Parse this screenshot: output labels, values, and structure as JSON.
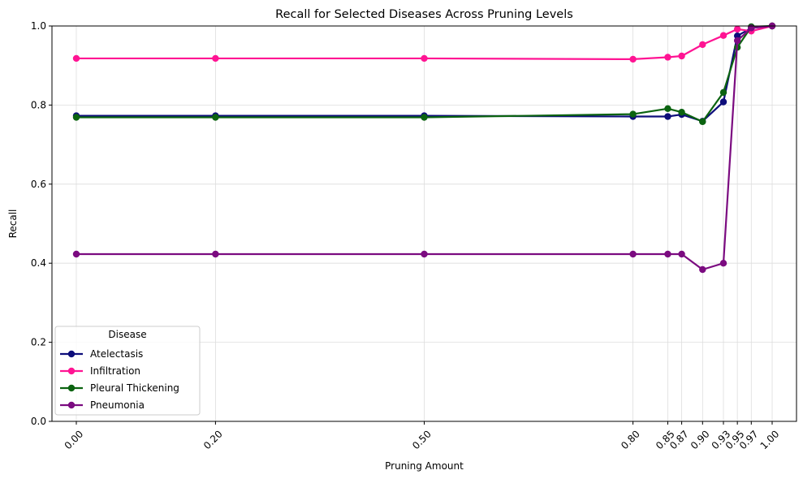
{
  "chart_data": {
    "type": "line",
    "title": "Recall for Selected Diseases Across Pruning Levels",
    "xlabel": "Pruning Amount",
    "ylabel": "Recall",
    "x": [
      0.0,
      0.2,
      0.5,
      0.8,
      0.85,
      0.87,
      0.9,
      0.93,
      0.95,
      0.97,
      1.0
    ],
    "x_tick_labels": [
      "0.00",
      "0.20",
      "0.50",
      "0.80",
      "0.85",
      "0.87",
      "0.90",
      "0.93",
      "0.95",
      "0.97",
      "1.00"
    ],
    "y_ticks": [
      0.0,
      0.2,
      0.4,
      0.6,
      0.8,
      1.0
    ],
    "y_tick_labels": [
      "0.0",
      "0.2",
      "0.4",
      "0.6",
      "0.8",
      "1.0"
    ],
    "xlim": [
      -0.035,
      1.035
    ],
    "ylim": [
      0.0,
      1.0
    ],
    "grid": true,
    "legend": {
      "title": "Disease",
      "placement": "lower-left"
    },
    "series": [
      {
        "name": "Atelectasis",
        "color": "#0d0d7a",
        "values": [
          0.773,
          0.773,
          0.773,
          0.771,
          0.771,
          0.776,
          0.759,
          0.808,
          0.975,
          0.995,
          1.0
        ]
      },
      {
        "name": "Infiltration",
        "color": "#ff1493",
        "values": [
          0.918,
          0.918,
          0.918,
          0.916,
          0.921,
          0.924,
          0.953,
          0.976,
          0.992,
          0.987,
          1.0
        ]
      },
      {
        "name": "Pleural Thickening",
        "color": "#0b6310",
        "values": [
          0.769,
          0.769,
          0.769,
          0.777,
          0.791,
          0.782,
          0.758,
          0.832,
          0.946,
          0.998,
          1.0
        ]
      },
      {
        "name": "Pneumonia",
        "color": "#7b0b80",
        "values": [
          0.423,
          0.423,
          0.423,
          0.423,
          0.423,
          0.423,
          0.384,
          0.4,
          0.963,
          0.995,
          1.0
        ]
      }
    ]
  }
}
